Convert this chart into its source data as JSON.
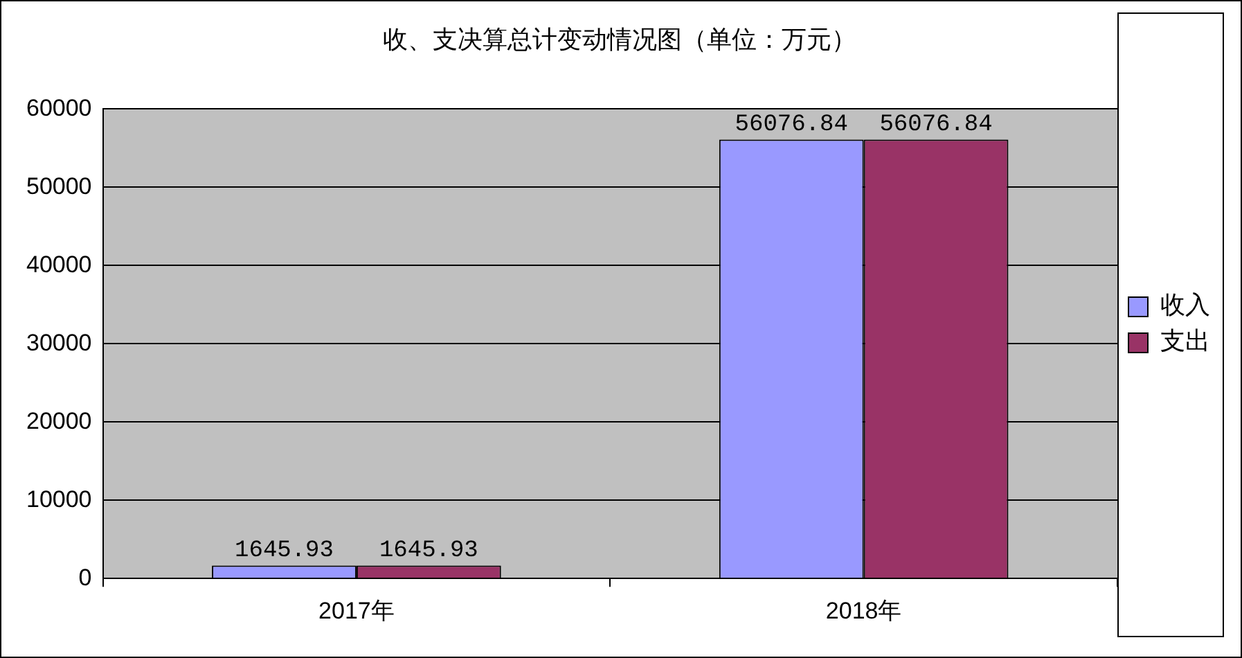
{
  "chart_data": {
    "type": "bar",
    "title": "收、支决算总计变动情况图（单位：万元）",
    "categories": [
      "2017年",
      "2018年"
    ],
    "series": [
      {
        "name": "收入",
        "color": "#9999ff",
        "values": [
          1645.93,
          56076.84
        ]
      },
      {
        "name": "支出",
        "color": "#993366",
        "values": [
          1645.93,
          56076.84
        ]
      }
    ],
    "ylim": [
      0,
      60000
    ],
    "yticks": [
      0,
      10000,
      20000,
      30000,
      40000,
      50000,
      60000
    ],
    "grid": "y",
    "legend": "right",
    "data_labels": true
  }
}
